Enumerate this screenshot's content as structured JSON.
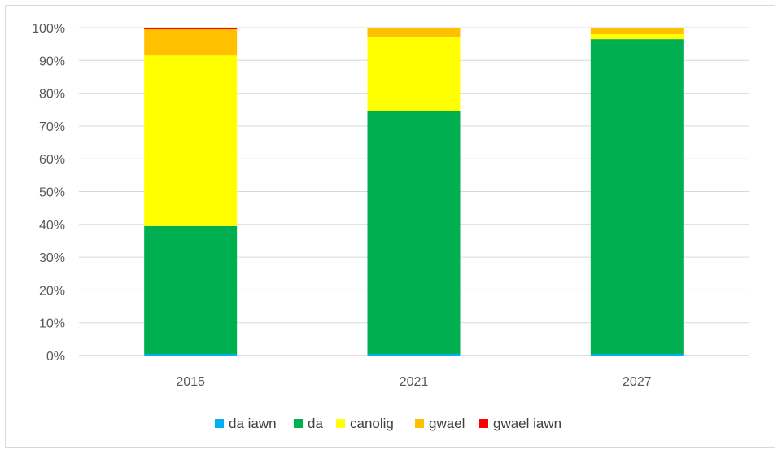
{
  "chart_data": {
    "type": "bar",
    "stacked": true,
    "percent": true,
    "categories": [
      "2015",
      "2021",
      "2027"
    ],
    "series": [
      {
        "name": "da iawn",
        "color": "#00b0f0",
        "values": [
          0.5,
          0.5,
          0.5
        ]
      },
      {
        "name": "da",
        "color": "#00b050",
        "values": [
          39,
          74,
          96
        ]
      },
      {
        "name": "canolig",
        "color": "#ffff00",
        "values": [
          52,
          22.5,
          1.5
        ]
      },
      {
        "name": "gwael",
        "color": "#ffc000",
        "values": [
          8,
          3,
          2
        ]
      },
      {
        "name": "gwael iawn",
        "color": "#ff0000",
        "values": [
          0.5,
          0,
          0
        ]
      }
    ],
    "ylim": [
      0,
      100
    ],
    "yticks": [
      "0%",
      "10%",
      "20%",
      "30%",
      "40%",
      "50%",
      "60%",
      "70%",
      "80%",
      "90%",
      "100%"
    ],
    "grid": true,
    "legend_position": "bottom"
  }
}
